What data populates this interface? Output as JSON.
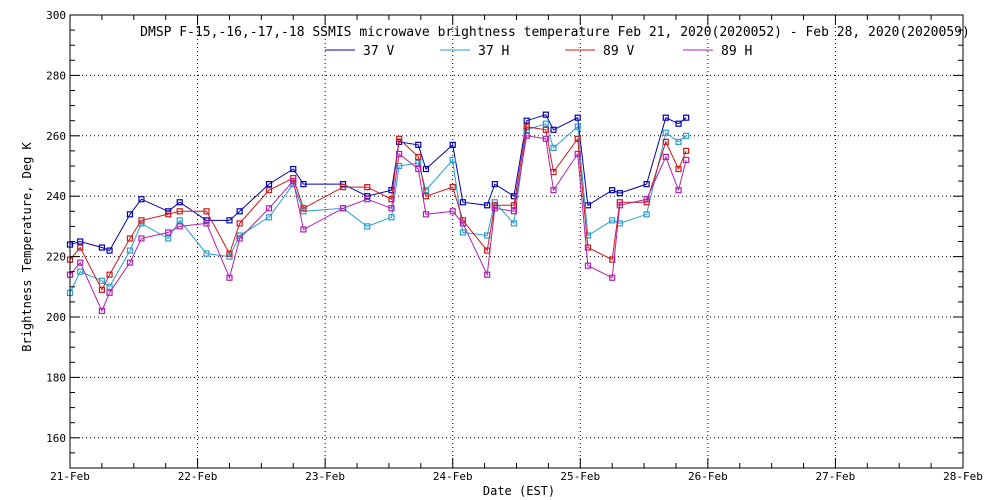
{
  "colors": {
    "background": "#ffffff",
    "axis": "#000000",
    "grid": "#000000",
    "s37v": "#0000b0",
    "s37h": "#2a9fd0",
    "s89v": "#d01818",
    "s89h": "#b020b0"
  },
  "chart_data": {
    "type": "line",
    "title": "DMSP F-15,-16,-17,-18 SSMIS microwave brightness temperature Feb 21, 2020(2020052) - Feb 28, 2020(2020059)",
    "xlabel": "Date (EST)",
    "ylabel": "Brightness Temperature, Deg K",
    "xlim": [
      0,
      7
    ],
    "ylim": [
      150,
      300
    ],
    "grid": true,
    "legend_position": "top-center",
    "x_ticks": [
      {
        "value": 0,
        "label": "21-Feb"
      },
      {
        "value": 1,
        "label": "22-Feb"
      },
      {
        "value": 2,
        "label": "23-Feb"
      },
      {
        "value": 3,
        "label": "24-Feb"
      },
      {
        "value": 4,
        "label": "25-Feb"
      },
      {
        "value": 5,
        "label": "26-Feb"
      },
      {
        "value": 6,
        "label": "27-Feb"
      },
      {
        "value": 7,
        "label": "28-Feb"
      }
    ],
    "y_ticks": [
      160,
      180,
      200,
      220,
      240,
      260,
      280,
      300
    ],
    "series": [
      {
        "name": "37 V",
        "color_key": "s37v",
        "x": [
          0.0,
          0.08,
          0.25,
          0.31,
          0.47,
          0.56,
          0.77,
          0.86,
          1.07,
          1.25,
          1.33,
          1.56,
          1.75,
          1.83,
          2.14,
          2.33,
          2.52,
          2.58,
          2.73,
          2.79,
          3.0,
          3.08,
          3.27,
          3.33,
          3.48,
          3.58,
          3.73,
          3.79,
          3.98,
          4.06,
          4.25,
          4.31,
          4.52,
          4.67,
          4.77
        ],
        "y": [
          224,
          225,
          223,
          222,
          234,
          239,
          235,
          238,
          232,
          232,
          235,
          244,
          249,
          244,
          244,
          240,
          242,
          258,
          257,
          249,
          257,
          238,
          237,
          244,
          240,
          265,
          267,
          262,
          266,
          237,
          242,
          241,
          244,
          266,
          264
        ]
      },
      {
        "name": "37 H",
        "color_key": "s37h",
        "x": [
          0.0,
          0.08,
          0.25,
          0.31,
          0.47,
          0.56,
          0.77,
          0.86,
          1.07,
          1.25,
          1.33,
          1.56,
          1.75,
          1.83,
          2.14,
          2.33,
          2.52,
          2.58,
          2.73,
          2.79,
          3.0,
          3.08,
          3.27,
          3.33,
          3.48,
          3.58,
          3.73,
          3.79,
          3.98,
          4.06,
          4.25,
          4.31,
          4.52,
          4.67,
          4.77
        ],
        "y": [
          208,
          215,
          212,
          210,
          222,
          231,
          226,
          232,
          221,
          220,
          227,
          233,
          244,
          235,
          236,
          230,
          233,
          250,
          251,
          242,
          252,
          228,
          227,
          238,
          231,
          262,
          264,
          256,
          263,
          227,
          232,
          231,
          234,
          261,
          258
        ]
      },
      {
        "name": "89 V",
        "color_key": "s89v",
        "x": [
          0.0,
          0.08,
          0.25,
          0.31,
          0.47,
          0.56,
          0.77,
          0.86,
          1.07,
          1.25,
          1.33,
          1.56,
          1.75,
          1.83,
          2.14,
          2.33,
          2.52,
          2.58,
          2.73,
          2.79,
          3.0,
          3.08,
          3.27,
          3.33,
          3.48,
          3.58,
          3.73,
          3.79,
          3.98,
          4.06,
          4.25,
          4.31,
          4.52,
          4.67,
          4.77
        ],
        "y": [
          219,
          223,
          209,
          214,
          226,
          232,
          234,
          235,
          235,
          221,
          231,
          242,
          246,
          236,
          243,
          243,
          239,
          259,
          253,
          240,
          243,
          232,
          222,
          237,
          237,
          263,
          262,
          248,
          259,
          223,
          219,
          238,
          238,
          258,
          249
        ]
      },
      {
        "name": "89 H",
        "color_key": "s89h",
        "x": [
          0.0,
          0.08,
          0.25,
          0.31,
          0.47,
          0.56,
          0.77,
          0.86,
          1.07,
          1.25,
          1.33,
          1.56,
          1.75,
          1.83,
          2.14,
          2.33,
          2.52,
          2.58,
          2.73,
          2.79,
          3.0,
          3.08,
          3.27,
          3.33,
          3.48,
          3.58,
          3.73,
          3.79,
          3.98,
          4.06,
          4.25,
          4.31,
          4.52,
          4.67,
          4.77
        ],
        "y": [
          214,
          218,
          202,
          208,
          218,
          226,
          228,
          230,
          231,
          213,
          226,
          236,
          245,
          229,
          236,
          239,
          236,
          254,
          249,
          234,
          235,
          231,
          214,
          236,
          235,
          260,
          259,
          242,
          254,
          217,
          213,
          237,
          239,
          253,
          242
        ]
      }
    ],
    "last_points": [
      {
        "name": "37 V",
        "x": 4.83,
        "y": 266
      },
      {
        "name": "37 H",
        "x": 4.83,
        "y": 260
      },
      {
        "name": "89 V",
        "x": 4.83,
        "y": 255
      },
      {
        "name": "89 H",
        "x": 4.83,
        "y": 252
      }
    ]
  }
}
